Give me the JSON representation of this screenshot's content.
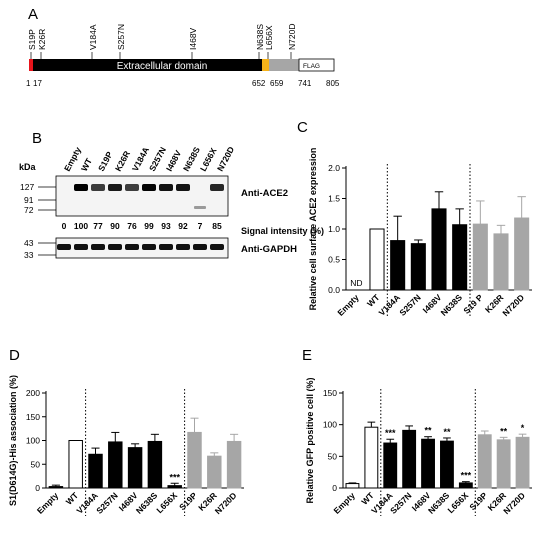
{
  "panels": {
    "A": "A",
    "B": "B",
    "C": "C",
    "D": "D",
    "E": "E"
  },
  "colors": {
    "black": "#000000",
    "gray": "#a6a6a6",
    "white": "#ffffff",
    "red": "#e8141b",
    "yellow": "#f5b21a"
  },
  "panel_a": {
    "mutations": [
      "S19P",
      "K26R",
      "V184A",
      "S257N",
      "I468V",
      "N638S",
      "L656X",
      "N720D"
    ],
    "domain_label": "Extracellular domain",
    "flag_label": "FLAG",
    "positions": [
      "1",
      "17",
      "652",
      "659",
      "741",
      "805"
    ]
  },
  "panel_b": {
    "lanes": [
      "Empty",
      "WT",
      "S19P",
      "K26R",
      "V184A",
      "S257N",
      "I468V",
      "N638S",
      "L656X",
      "N720D"
    ],
    "kda_label": "kDa",
    "markers_top": [
      "127",
      "91",
      "72"
    ],
    "markers_bottom": [
      "43",
      "33"
    ],
    "ace2_label": "Anti-ACE2",
    "gapdh_label": "Anti-GAPDH",
    "signal_label": "Signal intensity (%)",
    "signal_values": [
      "0",
      "100",
      "77",
      "90",
      "76",
      "99",
      "93",
      "92",
      "7",
      "85"
    ],
    "band_intensity": [
      0,
      1.0,
      0.77,
      0.9,
      0.76,
      0.99,
      0.93,
      0.92,
      0.07,
      0.85
    ]
  },
  "chart_data": [
    {
      "panel": "C",
      "type": "bar",
      "ylabel": "Relative cell surface ACE2 expression",
      "ylim": [
        0,
        2.0
      ],
      "yticks": [
        "0.0",
        "0.5",
        "1.0",
        "1.5",
        "2.0"
      ],
      "categories": [
        "Empty",
        "WT",
        "V184A",
        "S257N",
        "I468V",
        "N638S",
        "S19 P",
        "K26R",
        "N720D"
      ],
      "values": [
        null,
        1.0,
        0.81,
        0.76,
        1.33,
        1.07,
        1.08,
        0.92,
        1.18
      ],
      "errors": [
        0,
        0,
        0.4,
        0.06,
        0.28,
        0.26,
        0.38,
        0.14,
        0.35
      ],
      "styles": [
        "none",
        "white",
        "black",
        "black",
        "black",
        "black",
        "gray",
        "gray",
        "gray"
      ],
      "annotations": [
        "ND",
        "",
        "",
        "",
        "",
        "",
        "",
        "",
        ""
      ],
      "dividers_after": [
        1,
        5
      ]
    },
    {
      "panel": "D",
      "type": "bar",
      "ylabel": "S1(D614G)-His association (%)",
      "ylim": [
        0,
        200
      ],
      "yticks": [
        "0",
        "50",
        "100",
        "150",
        "200"
      ],
      "categories": [
        "Empty",
        "WT",
        "V184A",
        "S257N",
        "I468V",
        "N638S",
        "L656X",
        "S19P",
        "K26R",
        "N720D"
      ],
      "values": [
        3,
        100,
        71,
        97,
        85,
        98,
        5,
        117,
        67,
        98
      ],
      "errors": [
        3,
        0,
        13,
        20,
        8,
        15,
        5,
        30,
        7,
        15
      ],
      "styles": [
        "black",
        "white",
        "black",
        "black",
        "black",
        "black",
        "black",
        "gray",
        "gray",
        "gray"
      ],
      "annotations": [
        "",
        "",
        "",
        "",
        "",
        "",
        "***",
        "",
        "",
        ""
      ],
      "dividers_after": [
        1,
        6
      ]
    },
    {
      "panel": "E",
      "type": "bar",
      "ylabel": "Relative GFP positive cell  (%)",
      "ylim": [
        0,
        150
      ],
      "yticks": [
        "0",
        "50",
        "100",
        "150"
      ],
      "categories": [
        "Empty",
        "WT",
        "V184A",
        "S257N",
        "I468V",
        "N638S",
        "L656X",
        "S19P",
        "K26R",
        "N720D"
      ],
      "values": [
        7,
        96,
        71,
        91,
        77,
        74,
        8,
        84,
        76,
        80
      ],
      "errors": [
        1,
        8,
        6,
        7,
        4,
        5,
        2,
        6,
        4,
        5
      ],
      "styles": [
        "white",
        "white",
        "black",
        "black",
        "black",
        "black",
        "black",
        "gray",
        "gray",
        "gray"
      ],
      "annotations": [
        "",
        "",
        "***",
        "",
        "**",
        "**",
        "***",
        "",
        "**",
        "*"
      ],
      "dividers_after": [
        1,
        6
      ]
    }
  ]
}
